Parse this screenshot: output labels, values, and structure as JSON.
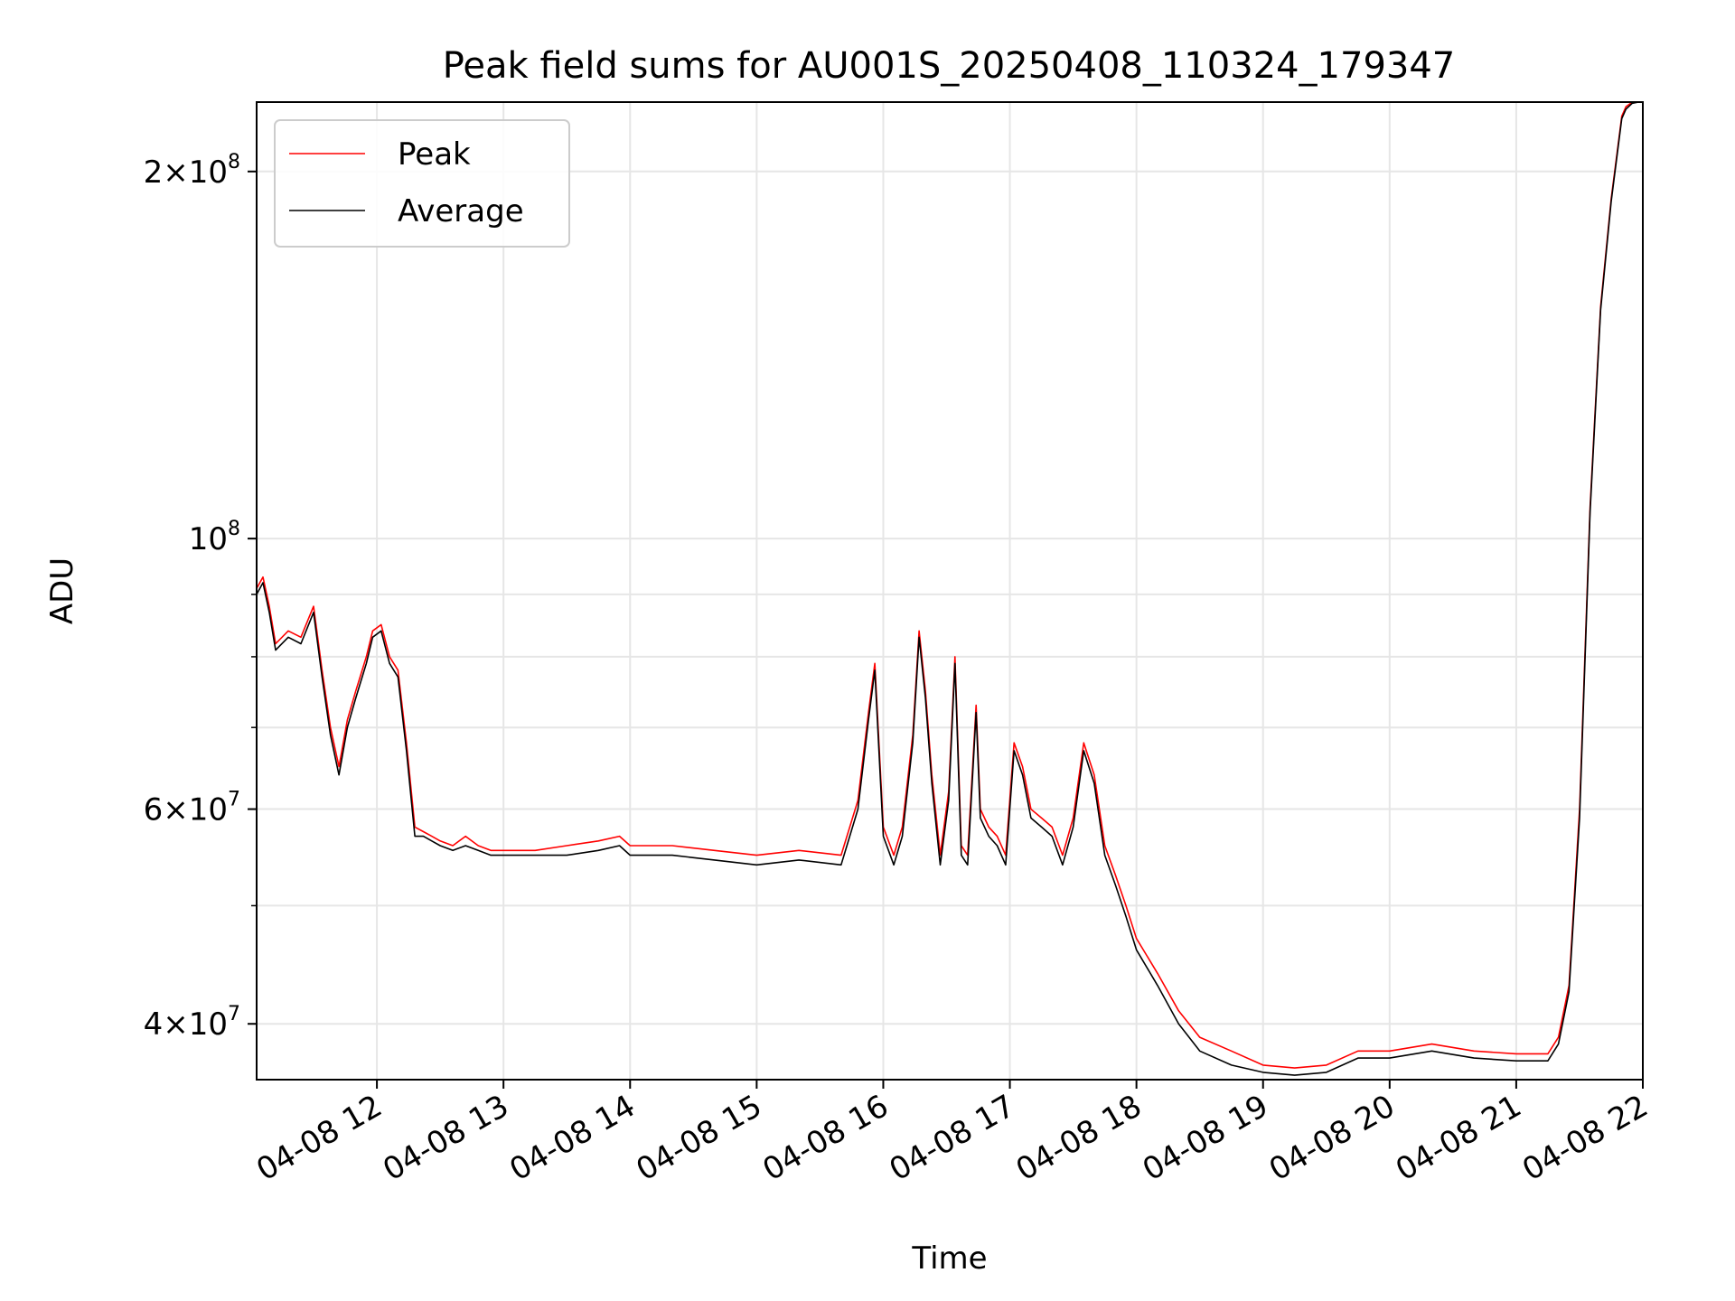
{
  "chart_data": {
    "type": "line",
    "title": "Peak field sums for AU001S_20250408_110324_179347",
    "xlabel": "Time",
    "ylabel": "ADU",
    "yscale": "log",
    "grid": true,
    "legend_position": "upper-left",
    "xlim": [
      "2025-04-08 11:03",
      "2025-04-08 22:00"
    ],
    "ylim": [
      36000000,
      228000000
    ],
    "x_ticks": [
      {
        "t": "2025-04-08 12:00",
        "label": "04-08 12"
      },
      {
        "t": "2025-04-08 13:00",
        "label": "04-08 13"
      },
      {
        "t": "2025-04-08 14:00",
        "label": "04-08 14"
      },
      {
        "t": "2025-04-08 15:00",
        "label": "04-08 15"
      },
      {
        "t": "2025-04-08 16:00",
        "label": "04-08 16"
      },
      {
        "t": "2025-04-08 17:00",
        "label": "04-08 17"
      },
      {
        "t": "2025-04-08 18:00",
        "label": "04-08 18"
      },
      {
        "t": "2025-04-08 19:00",
        "label": "04-08 19"
      },
      {
        "t": "2025-04-08 20:00",
        "label": "04-08 20"
      },
      {
        "t": "2025-04-08 21:00",
        "label": "04-08 21"
      },
      {
        "t": "2025-04-08 22:00",
        "label": "04-08 22"
      }
    ],
    "y_ticks": [
      {
        "value": 40000000,
        "mantissa": "4",
        "exponent": "7"
      },
      {
        "value": 60000000,
        "mantissa": "6",
        "exponent": "7"
      },
      {
        "value": 100000000,
        "mantissa": "",
        "exponent": "8"
      },
      {
        "value": 200000000,
        "mantissa": "2",
        "exponent": "8"
      }
    ],
    "y_minor_ticks": [
      50000000,
      70000000,
      80000000,
      90000000
    ],
    "series": [
      {
        "name": "Peak",
        "color": "#ff0000",
        "x": [
          "2025-04-08 11:03",
          "2025-04-08 11:06",
          "2025-04-08 11:09",
          "2025-04-08 11:12",
          "2025-04-08 11:18",
          "2025-04-08 11:24",
          "2025-04-08 11:30",
          "2025-04-08 11:34",
          "2025-04-08 11:38",
          "2025-04-08 11:42",
          "2025-04-08 11:46",
          "2025-04-08 11:50",
          "2025-04-08 11:55",
          "2025-04-08 11:58",
          "2025-04-08 12:02",
          "2025-04-08 12:06",
          "2025-04-08 12:10",
          "2025-04-08 12:14",
          "2025-04-08 12:18",
          "2025-04-08 12:22",
          "2025-04-08 12:26",
          "2025-04-08 12:30",
          "2025-04-08 12:36",
          "2025-04-08 12:42",
          "2025-04-08 12:48",
          "2025-04-08 12:54",
          "2025-04-08 13:00",
          "2025-04-08 13:15",
          "2025-04-08 13:30",
          "2025-04-08 13:45",
          "2025-04-08 13:55",
          "2025-04-08 14:00",
          "2025-04-08 14:20",
          "2025-04-08 14:40",
          "2025-04-08 15:00",
          "2025-04-08 15:20",
          "2025-04-08 15:40",
          "2025-04-08 15:48",
          "2025-04-08 15:53",
          "2025-04-08 15:56",
          "2025-04-08 16:00",
          "2025-04-08 16:05",
          "2025-04-08 16:09",
          "2025-04-08 16:14",
          "2025-04-08 16:17",
          "2025-04-08 16:20",
          "2025-04-08 16:23",
          "2025-04-08 16:27",
          "2025-04-08 16:31",
          "2025-04-08 16:34",
          "2025-04-08 16:37",
          "2025-04-08 16:40",
          "2025-04-08 16:44",
          "2025-04-08 16:46",
          "2025-04-08 16:50",
          "2025-04-08 16:54",
          "2025-04-08 16:58",
          "2025-04-08 17:02",
          "2025-04-08 17:06",
          "2025-04-08 17:10",
          "2025-04-08 17:15",
          "2025-04-08 17:20",
          "2025-04-08 17:25",
          "2025-04-08 17:30",
          "2025-04-08 17:35",
          "2025-04-08 17:40",
          "2025-04-08 17:45",
          "2025-04-08 17:50",
          "2025-04-08 17:55",
          "2025-04-08 18:00",
          "2025-04-08 18:10",
          "2025-04-08 18:20",
          "2025-04-08 18:30",
          "2025-04-08 18:45",
          "2025-04-08 19:00",
          "2025-04-08 19:15",
          "2025-04-08 19:30",
          "2025-04-08 19:45",
          "2025-04-08 20:00",
          "2025-04-08 20:20",
          "2025-04-08 20:40",
          "2025-04-08 21:00",
          "2025-04-08 21:15",
          "2025-04-08 21:20",
          "2025-04-08 21:25",
          "2025-04-08 21:30",
          "2025-04-08 21:35",
          "2025-04-08 21:40",
          "2025-04-08 21:45",
          "2025-04-08 21:50",
          "2025-04-08 21:52",
          "2025-04-08 21:55",
          "2025-04-08 21:58",
          "2025-04-08 22:00"
        ],
        "values": [
          91000000,
          93000000,
          88000000,
          82000000,
          84000000,
          83000000,
          88000000,
          78000000,
          70000000,
          65000000,
          71000000,
          75000000,
          80000000,
          84000000,
          85000000,
          80000000,
          78000000,
          68000000,
          58000000,
          57500000,
          57000000,
          56500000,
          56000000,
          57000000,
          56000000,
          55500000,
          55500000,
          55500000,
          56000000,
          56500000,
          57000000,
          56000000,
          56000000,
          55500000,
          55000000,
          55500000,
          55000000,
          61000000,
          72000000,
          79000000,
          58000000,
          55000000,
          58000000,
          69000000,
          84000000,
          75000000,
          64000000,
          55000000,
          62000000,
          80000000,
          56000000,
          55000000,
          73000000,
          60000000,
          58000000,
          57000000,
          55000000,
          68000000,
          65000000,
          60000000,
          59000000,
          58000000,
          55000000,
          59000000,
          68000000,
          64000000,
          56000000,
          53000000,
          50000000,
          47000000,
          44000000,
          41000000,
          39000000,
          38000000,
          37000000,
          36800000,
          37000000,
          38000000,
          38000000,
          38500000,
          38000000,
          37800000,
          37800000,
          39000000,
          43000000,
          60000000,
          106000000,
          155000000,
          190000000,
          222000000,
          226000000,
          228000000,
          228000000,
          228000000
        ]
      },
      {
        "name": "Average",
        "color": "#000000",
        "x": [
          "2025-04-08 11:03",
          "2025-04-08 11:06",
          "2025-04-08 11:09",
          "2025-04-08 11:12",
          "2025-04-08 11:18",
          "2025-04-08 11:24",
          "2025-04-08 11:30",
          "2025-04-08 11:34",
          "2025-04-08 11:38",
          "2025-04-08 11:42",
          "2025-04-08 11:46",
          "2025-04-08 11:50",
          "2025-04-08 11:55",
          "2025-04-08 11:58",
          "2025-04-08 12:02",
          "2025-04-08 12:06",
          "2025-04-08 12:10",
          "2025-04-08 12:14",
          "2025-04-08 12:18",
          "2025-04-08 12:22",
          "2025-04-08 12:26",
          "2025-04-08 12:30",
          "2025-04-08 12:36",
          "2025-04-08 12:42",
          "2025-04-08 12:48",
          "2025-04-08 12:54",
          "2025-04-08 13:00",
          "2025-04-08 13:15",
          "2025-04-08 13:30",
          "2025-04-08 13:45",
          "2025-04-08 13:55",
          "2025-04-08 14:00",
          "2025-04-08 14:20",
          "2025-04-08 14:40",
          "2025-04-08 15:00",
          "2025-04-08 15:20",
          "2025-04-08 15:40",
          "2025-04-08 15:48",
          "2025-04-08 15:53",
          "2025-04-08 15:56",
          "2025-04-08 16:00",
          "2025-04-08 16:05",
          "2025-04-08 16:09",
          "2025-04-08 16:14",
          "2025-04-08 16:17",
          "2025-04-08 16:20",
          "2025-04-08 16:23",
          "2025-04-08 16:27",
          "2025-04-08 16:31",
          "2025-04-08 16:34",
          "2025-04-08 16:37",
          "2025-04-08 16:40",
          "2025-04-08 16:44",
          "2025-04-08 16:46",
          "2025-04-08 16:50",
          "2025-04-08 16:54",
          "2025-04-08 16:58",
          "2025-04-08 17:02",
          "2025-04-08 17:06",
          "2025-04-08 17:10",
          "2025-04-08 17:15",
          "2025-04-08 17:20",
          "2025-04-08 17:25",
          "2025-04-08 17:30",
          "2025-04-08 17:35",
          "2025-04-08 17:40",
          "2025-04-08 17:45",
          "2025-04-08 17:50",
          "2025-04-08 17:55",
          "2025-04-08 18:00",
          "2025-04-08 18:10",
          "2025-04-08 18:20",
          "2025-04-08 18:30",
          "2025-04-08 18:45",
          "2025-04-08 19:00",
          "2025-04-08 19:15",
          "2025-04-08 19:30",
          "2025-04-08 19:45",
          "2025-04-08 20:00",
          "2025-04-08 20:20",
          "2025-04-08 20:40",
          "2025-04-08 21:00",
          "2025-04-08 21:15",
          "2025-04-08 21:20",
          "2025-04-08 21:25",
          "2025-04-08 21:30",
          "2025-04-08 21:35",
          "2025-04-08 21:40",
          "2025-04-08 21:45",
          "2025-04-08 21:50",
          "2025-04-08 21:52",
          "2025-04-08 21:55",
          "2025-04-08 21:58",
          "2025-04-08 22:00"
        ],
        "values": [
          90000000,
          92000000,
          87000000,
          81000000,
          83000000,
          82000000,
          87000000,
          77000000,
          69000000,
          64000000,
          70000000,
          74000000,
          79000000,
          83000000,
          84000000,
          79000000,
          77000000,
          67000000,
          57000000,
          57000000,
          56500000,
          56000000,
          55500000,
          56000000,
          55500000,
          55000000,
          55000000,
          55000000,
          55000000,
          55500000,
          56000000,
          55000000,
          55000000,
          54500000,
          54000000,
          54500000,
          54000000,
          60000000,
          71000000,
          78000000,
          57000000,
          54000000,
          57000000,
          68000000,
          83000000,
          74000000,
          63000000,
          54000000,
          61000000,
          79000000,
          55000000,
          54000000,
          72000000,
          59000000,
          57000000,
          56000000,
          54000000,
          67000000,
          64000000,
          59000000,
          58000000,
          57000000,
          54000000,
          58000000,
          67000000,
          63000000,
          55000000,
          52000000,
          49000000,
          46000000,
          43000000,
          40000000,
          38000000,
          37000000,
          36500000,
          36300000,
          36500000,
          37500000,
          37500000,
          38000000,
          37500000,
          37300000,
          37300000,
          38500000,
          42500000,
          59000000,
          105000000,
          154000000,
          189000000,
          221000000,
          225000000,
          227500000,
          228000000,
          228000000
        ]
      }
    ]
  }
}
